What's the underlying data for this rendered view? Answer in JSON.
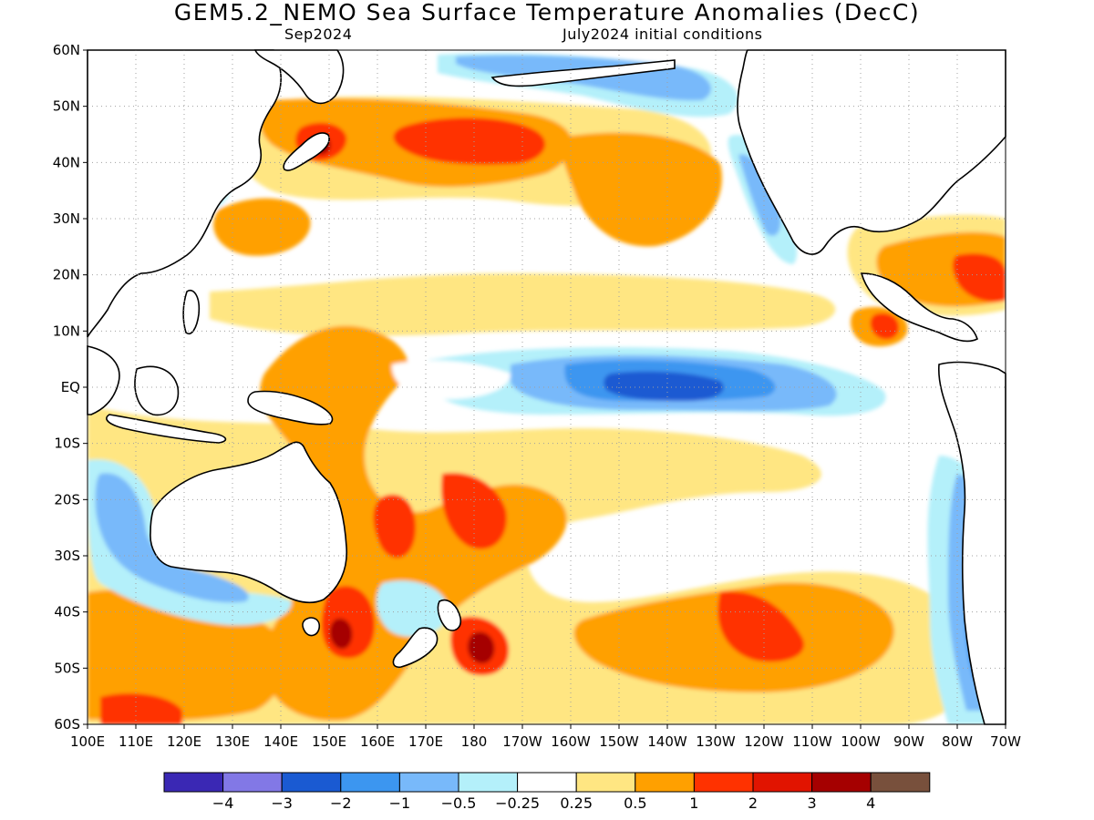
{
  "title": "GEM5.2_NEMO Sea Surface Temperature Anomalies (DecC)",
  "subtitle_left": "Sep2024",
  "subtitle_right": "July2024 initial conditions",
  "lat_labels": [
    "60N",
    "50N",
    "40N",
    "30N",
    "20N",
    "10N",
    "EQ",
    "10S",
    "20S",
    "30S",
    "40S",
    "50S",
    "60S"
  ],
  "lon_labels": [
    "100E",
    "110E",
    "120E",
    "130E",
    "140E",
    "150E",
    "160E",
    "170E",
    "180",
    "170W",
    "160W",
    "150W",
    "140W",
    "130W",
    "120W",
    "110W",
    "100W",
    "90W",
    "80W",
    "70W"
  ],
  "colorbar": {
    "colors": [
      "#3a28b4",
      "#8278e6",
      "#1a5ad2",
      "#3c96f0",
      "#78b9fa",
      "#b4f0fa",
      "#ffffff",
      "#ffe682",
      "#ffa000",
      "#ff3200",
      "#e11400",
      "#a50000",
      "#78503c"
    ],
    "labels": [
      "−4",
      "−3",
      "−2",
      "−1",
      "−0.5",
      "−0.25",
      "0.25",
      "0.5",
      "1",
      "2",
      "3",
      "4"
    ]
  }
}
